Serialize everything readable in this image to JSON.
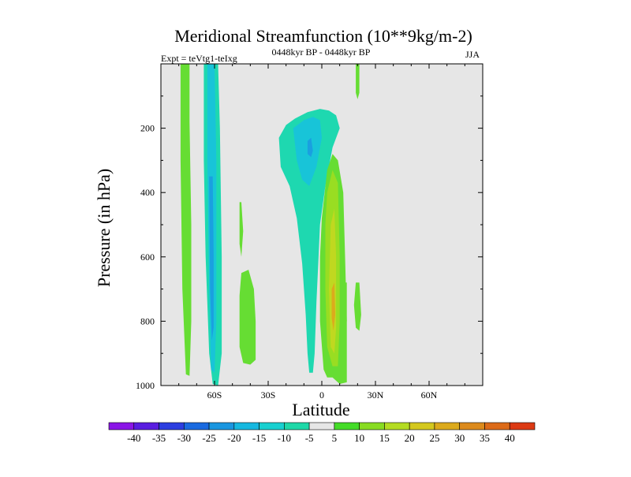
{
  "chart_data": {
    "type": "contour",
    "title": "Meridional Streamfunction (10**9kg/m-2)",
    "subtitle_left": "Expt = teVtg1-teIxg",
    "subtitle_center": "0448kyr BP - 0448kyr BP",
    "subtitle_right": "JJA",
    "xlabel": "Latitude",
    "ylabel": "Pressure (in hPa)",
    "x_range": [
      -90,
      90
    ],
    "y_range": [
      0,
      1000
    ],
    "x_ticks": [
      {
        "value": -60,
        "label": "60S"
      },
      {
        "value": -30,
        "label": "30S"
      },
      {
        "value": 0,
        "label": "0"
      },
      {
        "value": 30,
        "label": "30N"
      },
      {
        "value": 60,
        "label": "60N"
      }
    ],
    "y_ticks": [
      {
        "value": 200,
        "label": "200"
      },
      {
        "value": 400,
        "label": "400"
      },
      {
        "value": 600,
        "label": "600"
      },
      {
        "value": 800,
        "label": "800"
      },
      {
        "value": 1000,
        "label": "1000"
      }
    ],
    "background_color": "#e6e6e6",
    "colorbar": {
      "labels": [
        "-40",
        "-35",
        "-30",
        "-25",
        "-20",
        "-15",
        "-10",
        "-5",
        "5",
        "10",
        "15",
        "20",
        "25",
        "30",
        "35",
        "40"
      ],
      "colors": [
        "#8a16e6",
        "#5a1ee0",
        "#2c3ee0",
        "#1a6ae0",
        "#1a96e0",
        "#16b8e0",
        "#18d0d0",
        "#1ed8a8",
        "#e6e6e6",
        "#44dc28",
        "#88dc22",
        "#b4dc22",
        "#d4c81e",
        "#dcaa1c",
        "#dc8a1c",
        "#dc6a18",
        "#dc3a14"
      ]
    },
    "regions": [
      {
        "name": "band-far-south-positive",
        "color": "#66dd33",
        "points": [
          [
            -79,
            0
          ],
          [
            -74,
            0
          ],
          [
            -74,
            180
          ],
          [
            -73,
            500
          ],
          [
            -73,
            800
          ],
          [
            -74,
            970
          ],
          [
            -76,
            965
          ],
          [
            -78,
            700
          ],
          [
            -79,
            300
          ]
        ]
      },
      {
        "name": "band-60s-outer-negative",
        "color": "#1ed8b0",
        "points": [
          [
            -66,
            0
          ],
          [
            -58,
            0
          ],
          [
            -57,
            200
          ],
          [
            -56,
            600
          ],
          [
            -56,
            900
          ],
          [
            -58,
            1000
          ],
          [
            -61,
            995
          ],
          [
            -63,
            900
          ],
          [
            -65,
            600
          ],
          [
            -66,
            300
          ]
        ]
      },
      {
        "name": "band-60s-mid-negative",
        "color": "#18c4d8",
        "points": [
          [
            -64,
            0
          ],
          [
            -60,
            0
          ],
          [
            -59,
            300
          ],
          [
            -59,
            800
          ],
          [
            -60,
            960
          ],
          [
            -62,
            950
          ],
          [
            -63,
            700
          ],
          [
            -64,
            300
          ]
        ]
      },
      {
        "name": "band-60s-inner-negative",
        "color": "#1aa0e0",
        "points": [
          [
            -63,
            350
          ],
          [
            -61,
            350
          ],
          [
            -60.5,
            600
          ],
          [
            -60.5,
            820
          ],
          [
            -61.5,
            860
          ],
          [
            -62.5,
            700
          ]
        ]
      },
      {
        "name": "blob-40s-positive",
        "color": "#66dd33",
        "points": [
          [
            -45,
            650
          ],
          [
            -41,
            640
          ],
          [
            -38,
            700
          ],
          [
            -37,
            800
          ],
          [
            -37,
            920
          ],
          [
            -40,
            935
          ],
          [
            -44,
            930
          ],
          [
            -46,
            880
          ],
          [
            -46,
            720
          ]
        ]
      },
      {
        "name": "tongue-45s-positive",
        "color": "#66dd33",
        "points": [
          [
            -46,
            430
          ],
          [
            -45,
            430
          ],
          [
            -44,
            520
          ],
          [
            -45,
            600
          ],
          [
            -46,
            560
          ]
        ]
      },
      {
        "name": "cell-south-outer-negative",
        "color": "#1ed8b0",
        "points": [
          [
            -24,
            230
          ],
          [
            -20,
            190
          ],
          [
            -15,
            170
          ],
          [
            -8,
            150
          ],
          [
            -1,
            140
          ],
          [
            4,
            145
          ],
          [
            8,
            160
          ],
          [
            10,
            200
          ],
          [
            6,
            260
          ],
          [
            2,
            380
          ],
          [
            -1,
            500
          ],
          [
            -2,
            620
          ],
          [
            -3,
            740
          ],
          [
            -4,
            900
          ],
          [
            -5,
            960
          ],
          [
            -7,
            960
          ],
          [
            -8,
            900
          ],
          [
            -9,
            780
          ],
          [
            -11,
            620
          ],
          [
            -14,
            480
          ],
          [
            -18,
            380
          ],
          [
            -23,
            320
          ]
        ]
      },
      {
        "name": "cell-south-mid-negative",
        "color": "#18c4d8",
        "points": [
          [
            -16,
            200
          ],
          [
            -10,
            175
          ],
          [
            -5,
            165
          ],
          [
            -1,
            175
          ],
          [
            0,
            230
          ],
          [
            -3,
            320
          ],
          [
            -7,
            380
          ],
          [
            -11,
            360
          ],
          [
            -14,
            300
          ]
        ]
      },
      {
        "name": "cell-south-core-negative",
        "color": "#1aa0e0",
        "points": [
          [
            -8,
            240
          ],
          [
            -6,
            230
          ],
          [
            -5,
            270
          ],
          [
            -6,
            290
          ],
          [
            -8,
            280
          ]
        ]
      },
      {
        "name": "cell-north-outer-positive",
        "color": "#66dd33",
        "points": [
          [
            0,
            480
          ],
          [
            3,
            330
          ],
          [
            6,
            280
          ],
          [
            9,
            300
          ],
          [
            12,
            400
          ],
          [
            13,
            600
          ],
          [
            14,
            800
          ],
          [
            14,
            990
          ],
          [
            10,
            995
          ],
          [
            6,
            975
          ],
          [
            3,
            975
          ],
          [
            1,
            950
          ],
          [
            -1,
            800
          ],
          [
            -1,
            600
          ]
        ]
      },
      {
        "name": "cell-north-mid-positive",
        "color": "#99dd22",
        "points": [
          [
            3,
            400
          ],
          [
            6,
            330
          ],
          [
            9,
            370
          ],
          [
            10,
            600
          ],
          [
            10,
            800
          ],
          [
            9,
            940
          ],
          [
            6,
            940
          ],
          [
            3,
            880
          ],
          [
            2,
            700
          ],
          [
            2,
            500
          ]
        ]
      },
      {
        "name": "cell-north-inner-positive",
        "color": "#c0d820",
        "points": [
          [
            5,
            500
          ],
          [
            7,
            450
          ],
          [
            8,
            600
          ],
          [
            8,
            820
          ],
          [
            7,
            900
          ],
          [
            5,
            880
          ],
          [
            4,
            700
          ]
        ]
      },
      {
        "name": "cell-north-core-positive",
        "color": "#dcaa1c",
        "points": [
          [
            5.5,
            700
          ],
          [
            7,
            680
          ],
          [
            7.5,
            780
          ],
          [
            6.5,
            830
          ],
          [
            5.5,
            790
          ]
        ]
      },
      {
        "name": "strip-20n-positive",
        "color": "#66dd33",
        "points": [
          [
            19,
            680
          ],
          [
            21,
            680
          ],
          [
            22,
            780
          ],
          [
            21,
            830
          ],
          [
            19,
            820
          ],
          [
            18,
            750
          ]
        ]
      },
      {
        "name": "strip-15n-positive",
        "color": "#66dd33",
        "points": [
          [
            13,
            680
          ],
          [
            14,
            680
          ],
          [
            14,
            800
          ],
          [
            13,
            810
          ],
          [
            12.5,
            760
          ]
        ]
      },
      {
        "name": "strip-top-positive",
        "color": "#66dd33",
        "points": [
          [
            19,
            0
          ],
          [
            21,
            0
          ],
          [
            21,
            90
          ],
          [
            20,
            110
          ],
          [
            19,
            90
          ]
        ]
      }
    ]
  }
}
